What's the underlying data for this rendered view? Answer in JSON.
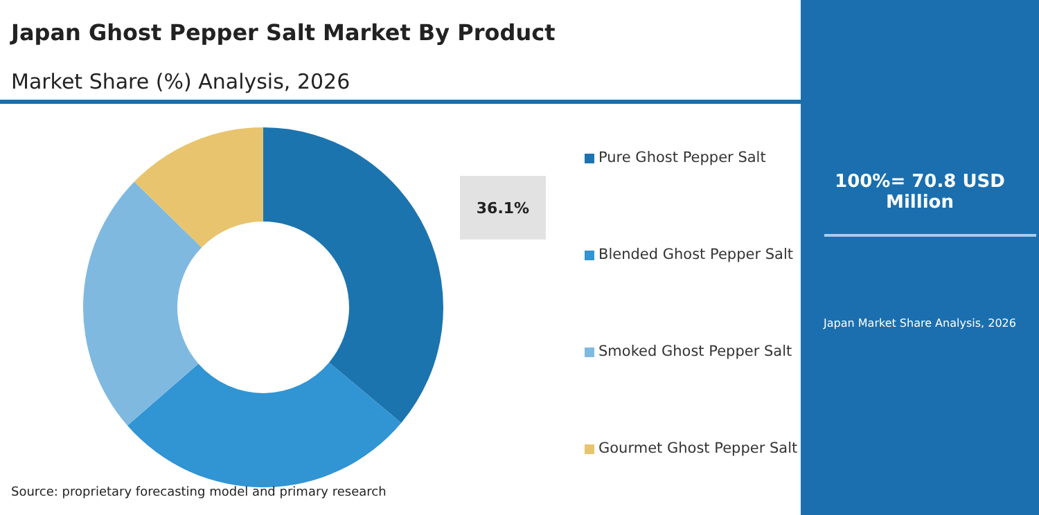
{
  "chart_data": {
    "type": "donut",
    "title": "Japan Ghost Pepper Salt Market By Product",
    "subtitle": "Market Share (%) Analysis, 2026",
    "categories": [
      "Pure Ghost Pepper Salt",
      "Blended Ghost Pepper Salt",
      "Smoked Ghost Pepper Salt",
      "Gourmet Ghost Pepper Salt"
    ],
    "values": [
      36.1,
      27.5,
      23.7,
      12.7
    ],
    "colors": [
      "#1c74ae",
      "#3194d3",
      "#80b9e0",
      "#e8c46e"
    ],
    "value_labels": [
      "36.1%",
      null,
      null,
      null
    ],
    "legend": "right",
    "annotations": [
      "100%= 70.8 USD Million",
      "Japan Market Share Analysis, 2026",
      "Source: proprietary forecasting model and primary research"
    ]
  }
}
